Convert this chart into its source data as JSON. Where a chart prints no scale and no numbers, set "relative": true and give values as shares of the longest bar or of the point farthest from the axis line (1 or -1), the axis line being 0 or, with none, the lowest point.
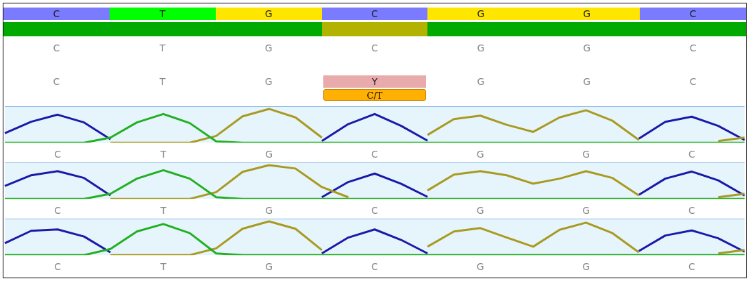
{
  "chart_data": [
    {
      "type": "other",
      "categories": [
        "C",
        "T",
        "G",
        "C",
        "G",
        "G",
        "C"
      ],
      "colors": [
        "#7b7bff",
        "#00ff00",
        "#ffe600",
        "#7b7bff",
        "#ffe600",
        "#ffe600",
        "#7b7bff"
      ],
      "cell_labels": [
        [
          "C",
          "T",
          "G",
          "C",
          "G",
          "G",
          "C"
        ],
        [
          "C",
          "T",
          "G",
          "Y",
          "G",
          "G",
          "C"
        ]
      ],
      "annotations": [
        {
          "text": "C/T",
          "x": "Y"
        }
      ]
    },
    {
      "type": "line",
      "relative": true,
      "marker": "none",
      "categories": [
        null,
        null,
        "C",
        null,
        null,
        null,
        "T",
        null,
        null,
        null,
        "G",
        null,
        null,
        null,
        "C",
        null,
        null,
        null,
        "G",
        null,
        null,
        null,
        "G",
        null,
        null,
        null,
        "C",
        null,
        null
      ],
      "series": [
        {
          "color": "#22b022",
          "values": [
            0,
            0,
            0,
            0,
            0.15,
            0.6,
            0.85,
            0.58,
            0.04,
            0,
            0,
            0,
            0,
            0,
            0,
            0,
            0,
            0,
            0,
            0,
            0,
            0,
            0,
            0,
            0,
            0,
            0,
            0,
            0
          ]
        },
        {
          "color": "#a89a20",
          "values": [
            null,
            null,
            null,
            null,
            0,
            0,
            0,
            0,
            0.2,
            0.78,
            1,
            0.75,
            0.15,
            null,
            null,
            null,
            0.23,
            0.7,
            0.8,
            0.53,
            0.32,
            0.75,
            0.96,
            0.65,
            0.08,
            null,
            null,
            0.05,
            0.15
          ]
        },
        {
          "color": "#1a1aa8",
          "values": [
            0.28,
            0.62,
            0.83,
            0.6,
            0.1,
            null,
            null,
            null,
            null,
            null,
            null,
            null,
            0.05,
            0.55,
            0.85,
            0.5,
            0.06,
            null,
            null,
            null,
            null,
            null,
            null,
            null,
            0.12,
            0.62,
            0.77,
            0.5,
            0.08
          ]
        }
      ]
    },
    {
      "type": "line",
      "relative": true,
      "marker": "none",
      "categories": [
        null,
        null,
        "C",
        null,
        null,
        null,
        "T",
        null,
        null,
        null,
        "G",
        null,
        null,
        null,
        "C",
        null,
        null,
        null,
        "G",
        null,
        null,
        null,
        "G",
        null,
        null,
        null,
        "C",
        null,
        null
      ],
      "series": [
        {
          "color": "#22b022",
          "values": [
            0,
            0,
            0,
            0,
            0.15,
            0.6,
            0.85,
            0.6,
            0.05,
            0,
            0,
            0,
            0,
            0,
            0,
            0,
            0,
            0,
            0,
            0,
            0,
            0,
            0,
            0,
            0,
            0,
            0,
            0,
            0
          ]
        },
        {
          "color": "#a89a20",
          "values": [
            null,
            null,
            null,
            null,
            0,
            0,
            0,
            0,
            0.2,
            0.8,
            1,
            0.9,
            0.35,
            0.05,
            null,
            null,
            0.25,
            0.72,
            0.82,
            0.7,
            0.45,
            0.6,
            0.82,
            0.62,
            0.1,
            null,
            null,
            0.05,
            0.15
          ]
        },
        {
          "color": "#1a1aa8",
          "values": [
            0.38,
            0.7,
            0.82,
            0.62,
            0.1,
            null,
            null,
            null,
            null,
            null,
            null,
            null,
            0.05,
            0.5,
            0.75,
            0.45,
            0.06,
            null,
            null,
            null,
            null,
            null,
            null,
            null,
            0.12,
            0.6,
            0.81,
            0.55,
            0.1
          ]
        }
      ]
    },
    {
      "type": "line",
      "relative": true,
      "marker": "none",
      "categories": [
        null,
        null,
        "C",
        null,
        null,
        null,
        "T",
        null,
        null,
        null,
        "G",
        null,
        null,
        null,
        "C",
        null,
        null,
        null,
        "G",
        null,
        null,
        null,
        "G",
        null,
        null,
        null,
        "C",
        null,
        null
      ],
      "series": [
        {
          "color": "#22b022",
          "values": [
            0,
            0,
            0,
            0,
            0.18,
            0.7,
            0.92,
            0.65,
            0.05,
            0,
            0,
            0,
            0,
            0,
            0,
            0,
            0,
            0,
            0,
            0,
            0,
            0,
            0,
            0,
            0,
            0,
            0,
            0,
            0
          ]
        },
        {
          "color": "#a89a20",
          "values": [
            null,
            null,
            null,
            null,
            0,
            0,
            0,
            0,
            0.2,
            0.78,
            1,
            0.78,
            0.15,
            null,
            null,
            null,
            0.25,
            0.7,
            0.8,
            0.52,
            0.25,
            0.75,
            0.96,
            0.65,
            0.08,
            null,
            null,
            0.05,
            0.15
          ]
        },
        {
          "color": "#1a1aa8",
          "values": [
            0.35,
            0.72,
            0.76,
            0.55,
            0.08,
            null,
            null,
            null,
            null,
            null,
            null,
            null,
            0.05,
            0.52,
            0.76,
            0.45,
            0.05,
            null,
            null,
            null,
            null,
            null,
            null,
            null,
            0.12,
            0.58,
            0.73,
            0.5,
            0.1
          ]
        }
      ]
    }
  ]
}
